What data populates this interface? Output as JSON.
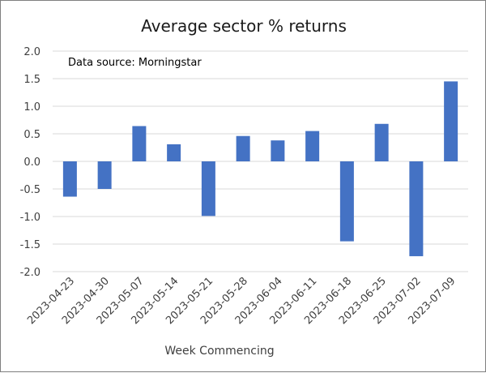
{
  "chart_data": {
    "type": "bar",
    "title": "Average sector % returns",
    "annotation": "Data source: Morningstar",
    "xlabel": "Week Commencing",
    "ylabel": "",
    "categories": [
      "2023-04-23",
      "2023-04-30",
      "2023-05-07",
      "2023-05-14",
      "2023-05-21",
      "2023-05-28",
      "2023-06-04",
      "2023-06-11",
      "2023-06-18",
      "2023-06-25",
      "2023-07-02",
      "2023-07-09"
    ],
    "values": [
      -0.64,
      -0.5,
      0.64,
      0.31,
      -0.99,
      0.46,
      0.38,
      0.55,
      -1.45,
      0.68,
      -1.72,
      1.45
    ],
    "ylim": [
      -2.0,
      2.0
    ],
    "yticks": [
      2.0,
      1.5,
      1.0,
      0.5,
      0.0,
      -0.5,
      -1.0,
      -1.5,
      -2.0
    ],
    "ytick_labels": [
      "2.0",
      "1.5",
      "1.0",
      "0.5",
      "0.0",
      "-0.5",
      "-1.0",
      "-1.5",
      "-2.0"
    ],
    "grid": true,
    "legend": "none",
    "bar_color": "#4472c4"
  }
}
